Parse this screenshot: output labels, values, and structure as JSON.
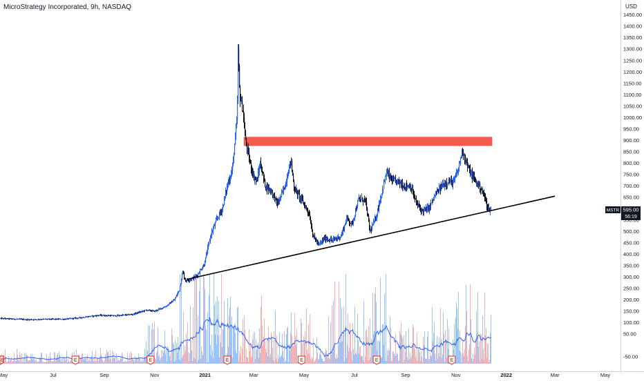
{
  "header": {
    "title": "MicroStrategy Incorporated, 9h, NASDAQ",
    "currency": "USD"
  },
  "price_label": {
    "symbol": "MSTR",
    "price": "595.00",
    "countdown": "56:19"
  },
  "colors": {
    "up": "#2962ff",
    "down": "#131722",
    "resistance": "#f44336",
    "volume_up": "#90bff9",
    "volume_down": "#f7a9a7",
    "volume_ma": "#2962ff",
    "trendline": "#000000",
    "earnings": "#f44336"
  },
  "chart_data": {
    "type": "candlestick",
    "title": "MicroStrategy Incorporated, 9h, NASDAQ",
    "y_axis": {
      "unit": "USD",
      "ticks": [
        "1450.00",
        "1400.00",
        "1350.00",
        "1300.00",
        "1250.00",
        "1200.00",
        "1150.00",
        "1100.00",
        "1050.00",
        "1000.00",
        "950.00",
        "900.00",
        "850.00",
        "800.00",
        "750.00",
        "700.00",
        "650.00",
        "600.00",
        "550.00",
        "500.00",
        "450.00",
        "400.00",
        "350.00",
        "300.00",
        "250.00",
        "200.00",
        "150.00",
        "100.00",
        "50.00",
        "-50.00"
      ],
      "range": [
        -65,
        1470
      ]
    },
    "x_axis": {
      "ticks": [
        {
          "label": "May",
          "date": "2020-05-01",
          "bold": false
        },
        {
          "label": "Jul",
          "date": "2020-07-01",
          "bold": false
        },
        {
          "label": "Sep",
          "date": "2020-09-01",
          "bold": false
        },
        {
          "label": "Nov",
          "date": "2020-11-01",
          "bold": false
        },
        {
          "label": "2021",
          "date": "2021-01-01",
          "bold": true
        },
        {
          "label": "Mar",
          "date": "2021-03-01",
          "bold": false
        },
        {
          "label": "May",
          "date": "2021-05-01",
          "bold": false
        },
        {
          "label": "Jul",
          "date": "2021-07-01",
          "bold": false
        },
        {
          "label": "Sep",
          "date": "2021-09-01",
          "bold": false
        },
        {
          "label": "Nov",
          "date": "2021-11-01",
          "bold": false
        },
        {
          "label": "2022",
          "date": "2022-01-01",
          "bold": true
        },
        {
          "label": "Mar",
          "date": "2022-03-01",
          "bold": false
        },
        {
          "label": "May",
          "date": "2022-05-01",
          "bold": false
        }
      ]
    },
    "price_path": [
      [
        "2020-05-01",
        118
      ],
      [
        "2020-06-01",
        113
      ],
      [
        "2020-06-20",
        115
      ],
      [
        "2020-07-15",
        115
      ],
      [
        "2020-08-01",
        121
      ],
      [
        "2020-08-25",
        132
      ],
      [
        "2020-09-15",
        130
      ],
      [
        "2020-10-05",
        136
      ],
      [
        "2020-10-22",
        155
      ],
      [
        "2020-11-01",
        150
      ],
      [
        "2020-11-15",
        172
      ],
      [
        "2020-11-25",
        200
      ],
      [
        "2020-12-01",
        245
      ],
      [
        "2020-12-05",
        325
      ],
      [
        "2020-12-08",
        285
      ],
      [
        "2020-12-15",
        290
      ],
      [
        "2020-12-22",
        305
      ],
      [
        "2020-12-31",
        355
      ],
      [
        "2021-01-08",
        485
      ],
      [
        "2021-01-15",
        550
      ],
      [
        "2021-01-22",
        600
      ],
      [
        "2021-01-28",
        700
      ],
      [
        "2021-02-03",
        770
      ],
      [
        "2021-02-09",
        1000
      ],
      [
        "2021-02-10",
        1300
      ],
      [
        "2021-02-12",
        1100
      ],
      [
        "2021-02-16",
        1030
      ],
      [
        "2021-02-19",
        900
      ],
      [
        "2021-02-24",
        810
      ],
      [
        "2021-03-01",
        740
      ],
      [
        "2021-03-05",
        720
      ],
      [
        "2021-03-09",
        800
      ],
      [
        "2021-03-15",
        700
      ],
      [
        "2021-03-22",
        680
      ],
      [
        "2021-03-30",
        620
      ],
      [
        "2021-04-08",
        700
      ],
      [
        "2021-04-15",
        815
      ],
      [
        "2021-04-19",
        690
      ],
      [
        "2021-04-28",
        640
      ],
      [
        "2021-05-07",
        580
      ],
      [
        "2021-05-12",
        480
      ],
      [
        "2021-05-19",
        440
      ],
      [
        "2021-05-26",
        470
      ],
      [
        "2021-06-04",
        460
      ],
      [
        "2021-06-15",
        480
      ],
      [
        "2021-06-22",
        560
      ],
      [
        "2021-06-28",
        530
      ],
      [
        "2021-07-06",
        640
      ],
      [
        "2021-07-14",
        640
      ],
      [
        "2021-07-20",
        500
      ],
      [
        "2021-07-27",
        560
      ],
      [
        "2021-08-09",
        760
      ],
      [
        "2021-08-16",
        720
      ],
      [
        "2021-08-23",
        720
      ],
      [
        "2021-08-30",
        700
      ],
      [
        "2021-09-07",
        700
      ],
      [
        "2021-09-14",
        625
      ],
      [
        "2021-09-21",
        590
      ],
      [
        "2021-09-29",
        600
      ],
      [
        "2021-10-07",
        660
      ],
      [
        "2021-10-15",
        700
      ],
      [
        "2021-10-22",
        720
      ],
      [
        "2021-10-29",
        715
      ],
      [
        "2021-11-03",
        760
      ],
      [
        "2021-11-09",
        860
      ],
      [
        "2021-11-12",
        820
      ],
      [
        "2021-11-18",
        760
      ],
      [
        "2021-11-25",
        720
      ],
      [
        "2021-12-01",
        690
      ],
      [
        "2021-12-06",
        650
      ],
      [
        "2021-12-10",
        600
      ],
      [
        "2021-12-14",
        595
      ]
    ],
    "resistance_zone": {
      "from_date": "2021-02-17",
      "to_date": "2021-12-15",
      "low": 875,
      "high": 915
    },
    "trendline": {
      "start": [
        "2020-12-10",
        290
      ],
      "end": [
        "2022-03-01",
        655
      ]
    },
    "volume_y_labels": [
      "250.00",
      "200.00",
      "150.00",
      "100.00",
      "50.00",
      "-50.00"
    ],
    "earnings_dates": [
      "2020-04-28",
      "2020-07-28",
      "2020-10-27",
      "2021-01-28",
      "2021-04-28",
      "2021-07-28",
      "2021-10-27"
    ],
    "earnings_label": "E"
  }
}
